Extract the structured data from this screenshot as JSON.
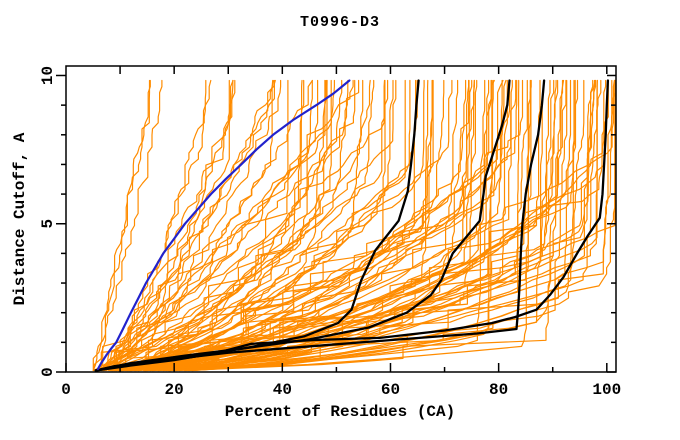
{
  "title": "T0996-D3",
  "axes": {
    "xlabel": "Percent of Residues (CA)",
    "ylabel": "Distance Cutoff, A",
    "x_ticks_major": [
      0,
      20,
      40,
      60,
      80,
      100
    ],
    "x_ticks_minor": [
      10,
      30,
      50,
      70,
      90
    ],
    "x_ticks_top": [
      10,
      20,
      30,
      40,
      50,
      60,
      70,
      80,
      90,
      100
    ],
    "y_ticks_major": [
      0,
      5,
      10
    ],
    "y_ticks_minor": [
      1,
      2,
      3,
      4,
      6,
      7,
      8,
      9
    ],
    "x_range": [
      0,
      101.7
    ],
    "y_range": [
      0,
      10.32
    ]
  },
  "colors": {
    "background": "#ffffff",
    "axis": "#000000",
    "orange": "#ff8c00",
    "black": "#000000",
    "blue": "#2222cc"
  },
  "chart_data": {
    "type": "line",
    "title": "T0996-D3",
    "xlabel": "Percent of Residues (CA)",
    "ylabel": "Distance Cutoff, A",
    "xlim": [
      0,
      101.7
    ],
    "ylim": [
      0,
      10.32
    ],
    "grid": false,
    "legend": "none",
    "series": [
      {
        "name": "blue-highlight-curve",
        "color_key": "blue",
        "width": 2.2,
        "points": [
          [
            5.9,
            0.1
          ],
          [
            6.5,
            0.3
          ],
          [
            7.4,
            0.55
          ],
          [
            8.4,
            0.8
          ],
          [
            9.3,
            1.0
          ],
          [
            10.4,
            1.4
          ],
          [
            12.0,
            2.0
          ],
          [
            13.4,
            2.5
          ],
          [
            14.8,
            3.0
          ],
          [
            16.4,
            3.5
          ],
          [
            18.0,
            4.0
          ],
          [
            20.0,
            4.5
          ],
          [
            22.0,
            5.0
          ],
          [
            24.4,
            5.5
          ],
          [
            26.8,
            6.0
          ],
          [
            29.5,
            6.5
          ],
          [
            32.4,
            7.0
          ],
          [
            35.2,
            7.5
          ],
          [
            38.3,
            8.0
          ],
          [
            42.0,
            8.5
          ],
          [
            46.3,
            9.0
          ],
          [
            49.5,
            9.4
          ],
          [
            52.4,
            9.83
          ]
        ]
      },
      {
        "name": "black-curve-1",
        "color_key": "black",
        "width": 2.3,
        "points": [
          [
            5.5,
            0.05
          ],
          [
            9.0,
            0.2
          ],
          [
            17.0,
            0.35
          ],
          [
            23.0,
            0.5
          ],
          [
            33.0,
            0.8
          ],
          [
            44.0,
            1.2
          ],
          [
            50.3,
            1.65
          ],
          [
            52.8,
            2.1
          ],
          [
            54.6,
            3.1
          ],
          [
            57.2,
            4.1
          ],
          [
            61.5,
            5.1
          ],
          [
            63.2,
            6.1
          ],
          [
            63.8,
            7.0
          ],
          [
            64.4,
            8.0
          ],
          [
            64.8,
            9.0
          ],
          [
            65.2,
            9.83
          ]
        ]
      },
      {
        "name": "black-curve-2",
        "color_key": "black",
        "width": 2.3,
        "points": [
          [
            5.5,
            0.05
          ],
          [
            12.0,
            0.3
          ],
          [
            22.0,
            0.55
          ],
          [
            33.0,
            0.8
          ],
          [
            45.0,
            1.1
          ],
          [
            56.0,
            1.5
          ],
          [
            63.0,
            2.0
          ],
          [
            67.5,
            2.6
          ],
          [
            69.4,
            3.1
          ],
          [
            71.5,
            4.0
          ],
          [
            76.5,
            5.1
          ],
          [
            77.2,
            6.0
          ],
          [
            77.6,
            6.6
          ],
          [
            79.2,
            7.5
          ],
          [
            80.6,
            8.3
          ],
          [
            81.6,
            9.0
          ],
          [
            82.0,
            9.83
          ]
        ]
      },
      {
        "name": "black-curve-3",
        "color_key": "black",
        "width": 2.3,
        "points": [
          [
            5.5,
            0.05
          ],
          [
            15.7,
            0.35
          ],
          [
            30.0,
            0.65
          ],
          [
            44.0,
            0.85
          ],
          [
            61.7,
            1.1
          ],
          [
            76.0,
            1.3
          ],
          [
            83.3,
            1.45
          ],
          [
            83.6,
            2.1
          ],
          [
            83.9,
            3.0
          ],
          [
            84.1,
            4.0
          ],
          [
            84.4,
            5.0
          ],
          [
            85.0,
            6.0
          ],
          [
            86.0,
            7.0
          ],
          [
            87.3,
            8.0
          ],
          [
            88.0,
            9.0
          ],
          [
            88.4,
            9.83
          ]
        ]
      },
      {
        "name": "black-curve-4",
        "color_key": "black",
        "width": 2.3,
        "points": [
          [
            5.5,
            0.05
          ],
          [
            12.0,
            0.22
          ],
          [
            20.0,
            0.4
          ],
          [
            28.0,
            0.65
          ],
          [
            34.3,
            0.95
          ],
          [
            46.0,
            1.08
          ],
          [
            58.0,
            1.15
          ],
          [
            70.0,
            1.4
          ],
          [
            78.7,
            1.65
          ],
          [
            83.0,
            1.85
          ],
          [
            87.0,
            2.1
          ],
          [
            89.5,
            2.6
          ],
          [
            92.0,
            3.2
          ],
          [
            94.5,
            4.0
          ],
          [
            96.5,
            4.6
          ],
          [
            98.7,
            5.2
          ],
          [
            99.2,
            6.0
          ],
          [
            99.5,
            7.0
          ],
          [
            99.8,
            8.0
          ],
          [
            100.0,
            9.0
          ],
          [
            100.2,
            9.83
          ]
        ]
      },
      {
        "name": "orange-model-curves",
        "color_key": "orange",
        "width": 1.2,
        "generated": true
      }
    ],
    "orange_generator": {
      "seed": 1337,
      "x0_range": [
        4.5,
        7.5
      ],
      "y_start": 0.05,
      "y_end": 9.83,
      "steps": 48,
      "jitter": 1.6,
      "plateau_prob": 0.07,
      "creep_max": 0.5,
      "x_clamp": 101.5,
      "groups": [
        {
          "count": 3,
          "F": [
            14,
            21
          ],
          "ym": [
            8.0,
            9.8
          ],
          "p": [
            0.75,
            1.05
          ]
        },
        {
          "count": 11,
          "F": [
            24,
            40
          ],
          "ym": [
            6.0,
            9.8
          ],
          "p": [
            0.6,
            1.0
          ]
        },
        {
          "count": 28,
          "F": [
            40,
            65
          ],
          "ym": [
            4.0,
            9.5
          ],
          "p": [
            0.5,
            0.95
          ]
        },
        {
          "count": 30,
          "F": [
            65,
            85
          ],
          "ym": [
            2.5,
            8.0
          ],
          "p": [
            0.42,
            0.85
          ]
        },
        {
          "count": 18,
          "F": [
            85,
            97
          ],
          "ym": [
            2.0,
            6.5
          ],
          "p": [
            0.38,
            0.7
          ]
        },
        {
          "count": 10,
          "F": [
            97,
            101.5
          ],
          "ym": [
            2.5,
            7.5
          ],
          "p": [
            0.4,
            0.7
          ]
        },
        {
          "count": 7,
          "F": [
            75,
            90
          ],
          "ym": [
            0.8,
            1.8
          ],
          "p": [
            0.45,
            0.7
          ]
        }
      ]
    }
  }
}
